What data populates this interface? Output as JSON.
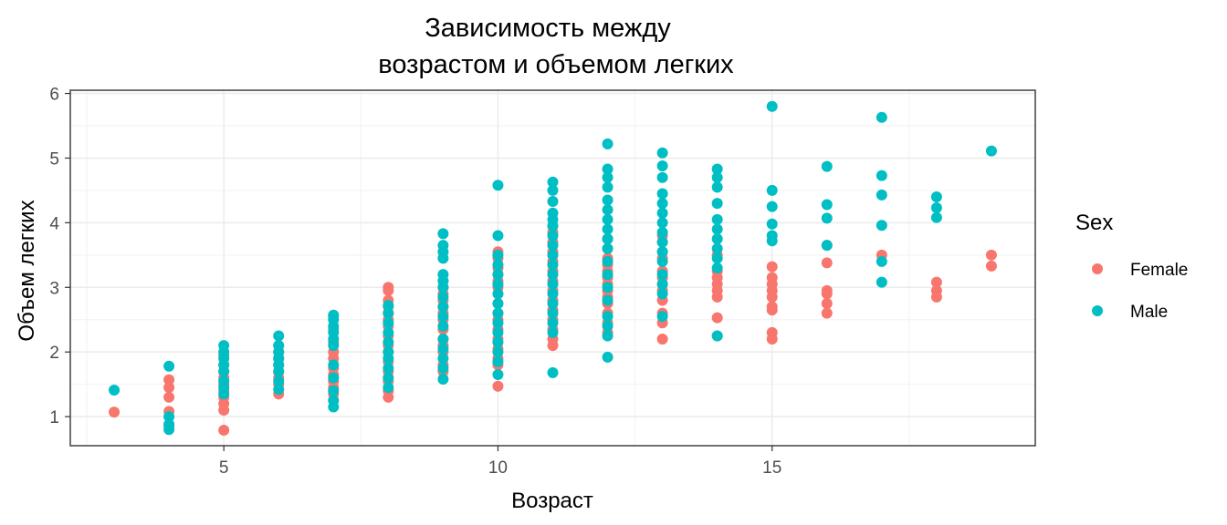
{
  "chart_data": {
    "type": "scatter",
    "title": [
      "Зависимость между",
      "возрастом и объемом легких"
    ],
    "xlabel": "Возраст",
    "ylabel": "Объем легких",
    "xlim": [
      2.2,
      19.8
    ],
    "ylim": [
      0.55,
      6.05
    ],
    "xticks": [
      5,
      10,
      15
    ],
    "yticks": [
      1,
      2,
      3,
      4,
      5,
      6
    ],
    "grid": true,
    "legend": {
      "title": "Sex",
      "position": "right",
      "entries": [
        {
          "label": "Female",
          "color": "#F8766D"
        },
        {
          "label": "Male",
          "color": "#00BFC4"
        }
      ]
    },
    "series": [
      {
        "name": "Female",
        "color": "#F8766D",
        "points": [
          [
            3,
            1.07
          ],
          [
            4,
            0.85
          ],
          [
            4,
            1.08
          ],
          [
            4,
            1.3
          ],
          [
            4,
            1.45
          ],
          [
            4,
            1.57
          ],
          [
            5,
            0.79
          ],
          [
            5,
            1.1
          ],
          [
            5,
            1.2
          ],
          [
            5,
            1.3
          ],
          [
            5,
            1.4
          ],
          [
            5,
            1.5
          ],
          [
            5,
            1.6
          ],
          [
            5,
            1.7
          ],
          [
            5,
            1.8
          ],
          [
            5,
            1.95
          ],
          [
            6,
            1.35
          ],
          [
            6,
            1.5
          ],
          [
            6,
            1.6
          ],
          [
            6,
            1.7
          ],
          [
            6,
            1.8
          ],
          [
            6,
            1.9
          ],
          [
            6,
            2.0
          ],
          [
            6,
            2.1
          ],
          [
            7,
            1.25
          ],
          [
            7,
            1.35
          ],
          [
            7,
            1.45
          ],
          [
            7,
            1.55
          ],
          [
            7,
            1.65
          ],
          [
            7,
            1.75
          ],
          [
            7,
            1.9
          ],
          [
            7,
            2.0
          ],
          [
            7,
            2.15
          ],
          [
            7,
            2.35
          ],
          [
            7,
            2.55
          ],
          [
            8,
            1.3
          ],
          [
            8,
            1.4
          ],
          [
            8,
            1.55
          ],
          [
            8,
            1.7
          ],
          [
            8,
            1.85
          ],
          [
            8,
            2.0
          ],
          [
            8,
            2.1
          ],
          [
            8,
            2.25
          ],
          [
            8,
            2.4
          ],
          [
            8,
            2.5
          ],
          [
            8,
            2.6
          ],
          [
            8,
            2.7
          ],
          [
            8,
            2.8
          ],
          [
            8,
            2.95
          ],
          [
            8,
            3.0
          ],
          [
            9,
            1.7
          ],
          [
            9,
            1.8
          ],
          [
            9,
            2.0
          ],
          [
            9,
            2.1
          ],
          [
            9,
            2.2
          ],
          [
            9,
            2.35
          ],
          [
            9,
            2.5
          ],
          [
            9,
            2.6
          ],
          [
            9,
            2.7
          ],
          [
            9,
            2.8
          ],
          [
            9,
            2.9
          ],
          [
            9,
            3.0
          ],
          [
            9,
            3.1
          ],
          [
            10,
            1.47
          ],
          [
            10,
            1.8
          ],
          [
            10,
            1.9
          ],
          [
            10,
            2.05
          ],
          [
            10,
            2.2
          ],
          [
            10,
            2.35
          ],
          [
            10,
            2.5
          ],
          [
            10,
            2.6
          ],
          [
            10,
            2.75
          ],
          [
            10,
            2.9
          ],
          [
            10,
            3.0
          ],
          [
            10,
            3.1
          ],
          [
            10,
            3.2
          ],
          [
            10,
            3.3
          ],
          [
            10,
            3.45
          ],
          [
            10,
            3.55
          ],
          [
            11,
            2.1
          ],
          [
            11,
            2.2
          ],
          [
            11,
            2.35
          ],
          [
            11,
            2.5
          ],
          [
            11,
            2.65
          ],
          [
            11,
            2.8
          ],
          [
            11,
            2.95
          ],
          [
            11,
            3.1
          ],
          [
            11,
            3.25
          ],
          [
            11,
            3.4
          ],
          [
            11,
            3.55
          ],
          [
            11,
            3.7
          ],
          [
            11,
            3.85
          ],
          [
            11,
            3.95
          ],
          [
            12,
            2.3
          ],
          [
            12,
            2.45
          ],
          [
            12,
            2.6
          ],
          [
            12,
            2.75
          ],
          [
            12,
            2.85
          ],
          [
            12,
            2.95
          ],
          [
            12,
            3.05
          ],
          [
            12,
            3.15
          ],
          [
            12,
            3.25
          ],
          [
            12,
            3.35
          ],
          [
            12,
            3.45
          ],
          [
            12,
            3.6
          ],
          [
            12,
            3.75
          ],
          [
            13,
            2.2
          ],
          [
            13,
            2.45
          ],
          [
            13,
            2.6
          ],
          [
            13,
            2.8
          ],
          [
            13,
            2.95
          ],
          [
            13,
            3.05
          ],
          [
            13,
            3.15
          ],
          [
            13,
            3.25
          ],
          [
            13,
            3.45
          ],
          [
            13,
            3.55
          ],
          [
            13,
            3.7
          ],
          [
            13,
            3.8
          ],
          [
            14,
            2.25
          ],
          [
            14,
            2.53
          ],
          [
            14,
            2.85
          ],
          [
            14,
            2.95
          ],
          [
            14,
            3.05
          ],
          [
            14,
            3.15
          ],
          [
            14,
            3.25
          ],
          [
            14,
            3.5
          ],
          [
            15,
            2.2
          ],
          [
            15,
            2.3
          ],
          [
            15,
            2.65
          ],
          [
            15,
            2.7
          ],
          [
            15,
            2.85
          ],
          [
            15,
            2.95
          ],
          [
            15,
            3.05
          ],
          [
            15,
            3.15
          ],
          [
            15,
            3.32
          ],
          [
            16,
            2.6
          ],
          [
            16,
            2.75
          ],
          [
            16,
            2.9
          ],
          [
            16,
            2.95
          ],
          [
            16,
            3.38
          ],
          [
            16,
            3.65
          ],
          [
            17,
            3.5
          ],
          [
            18,
            2.85
          ],
          [
            18,
            2.95
          ],
          [
            18,
            3.08
          ],
          [
            19,
            3.33
          ],
          [
            19,
            3.5
          ]
        ]
      },
      {
        "name": "Male",
        "color": "#00BFC4",
        "points": [
          [
            3,
            1.41
          ],
          [
            4,
            0.8
          ],
          [
            4,
            0.88
          ],
          [
            4,
            1.0
          ],
          [
            4,
            1.78
          ],
          [
            5,
            1.35
          ],
          [
            5,
            1.45
          ],
          [
            5,
            1.55
          ],
          [
            5,
            1.7
          ],
          [
            5,
            1.8
          ],
          [
            5,
            1.9
          ],
          [
            5,
            2.0
          ],
          [
            5,
            2.1
          ],
          [
            6,
            1.42
          ],
          [
            6,
            1.55
          ],
          [
            6,
            1.7
          ],
          [
            6,
            1.8
          ],
          [
            6,
            1.9
          ],
          [
            6,
            2.0
          ],
          [
            6,
            2.1
          ],
          [
            6,
            2.25
          ],
          [
            7,
            1.15
          ],
          [
            7,
            1.25
          ],
          [
            7,
            1.4
          ],
          [
            7,
            1.6
          ],
          [
            7,
            1.8
          ],
          [
            7,
            2.1
          ],
          [
            7,
            2.2
          ],
          [
            7,
            2.3
          ],
          [
            7,
            2.4
          ],
          [
            7,
            2.5
          ],
          [
            7,
            2.57
          ],
          [
            8,
            1.45
          ],
          [
            8,
            1.6
          ],
          [
            8,
            1.75
          ],
          [
            8,
            1.9
          ],
          [
            8,
            2.0
          ],
          [
            8,
            2.15
          ],
          [
            8,
            2.3
          ],
          [
            8,
            2.45
          ],
          [
            8,
            2.6
          ],
          [
            8,
            2.72
          ],
          [
            9,
            1.58
          ],
          [
            9,
            1.75
          ],
          [
            9,
            1.9
          ],
          [
            9,
            2.05
          ],
          [
            9,
            2.2
          ],
          [
            9,
            2.4
          ],
          [
            9,
            2.55
          ],
          [
            9,
            2.7
          ],
          [
            9,
            2.85
          ],
          [
            9,
            3.0
          ],
          [
            9,
            3.1
          ],
          [
            9,
            3.2
          ],
          [
            9,
            3.45
          ],
          [
            9,
            3.55
          ],
          [
            9,
            3.65
          ],
          [
            9,
            3.83
          ],
          [
            10,
            1.65
          ],
          [
            10,
            1.85
          ],
          [
            10,
            2.0
          ],
          [
            10,
            2.15
          ],
          [
            10,
            2.3
          ],
          [
            10,
            2.45
          ],
          [
            10,
            2.6
          ],
          [
            10,
            2.75
          ],
          [
            10,
            2.9
          ],
          [
            10,
            3.05
          ],
          [
            10,
            3.2
          ],
          [
            10,
            3.35
          ],
          [
            10,
            3.5
          ],
          [
            10,
            3.8
          ],
          [
            10,
            4.58
          ],
          [
            11,
            1.68
          ],
          [
            11,
            2.3
          ],
          [
            11,
            2.45
          ],
          [
            11,
            2.6
          ],
          [
            11,
            2.75
          ],
          [
            11,
            2.9
          ],
          [
            11,
            3.05
          ],
          [
            11,
            3.2
          ],
          [
            11,
            3.35
          ],
          [
            11,
            3.5
          ],
          [
            11,
            3.65
          ],
          [
            11,
            3.8
          ],
          [
            11,
            3.95
          ],
          [
            11,
            4.05
          ],
          [
            11,
            4.15
          ],
          [
            11,
            4.33
          ],
          [
            11,
            4.5
          ],
          [
            11,
            4.63
          ],
          [
            12,
            1.92
          ],
          [
            12,
            2.25
          ],
          [
            12,
            2.4
          ],
          [
            12,
            2.55
          ],
          [
            12,
            2.8
          ],
          [
            12,
            3.0
          ],
          [
            12,
            3.2
          ],
          [
            12,
            3.4
          ],
          [
            12,
            3.6
          ],
          [
            12,
            3.75
          ],
          [
            12,
            3.9
          ],
          [
            12,
            4.05
          ],
          [
            12,
            4.2
          ],
          [
            12,
            4.35
          ],
          [
            12,
            4.55
          ],
          [
            12,
            4.7
          ],
          [
            12,
            4.83
          ],
          [
            12,
            5.22
          ],
          [
            13,
            2.55
          ],
          [
            13,
            2.9
          ],
          [
            13,
            3.05
          ],
          [
            13,
            3.2
          ],
          [
            13,
            3.4
          ],
          [
            13,
            3.55
          ],
          [
            13,
            3.7
          ],
          [
            13,
            3.85
          ],
          [
            13,
            4.0
          ],
          [
            13,
            4.15
          ],
          [
            13,
            4.3
          ],
          [
            13,
            4.45
          ],
          [
            13,
            4.7
          ],
          [
            13,
            4.88
          ],
          [
            13,
            5.08
          ],
          [
            14,
            2.25
          ],
          [
            14,
            3.3
          ],
          [
            14,
            3.45
          ],
          [
            14,
            3.6
          ],
          [
            14,
            3.75
          ],
          [
            14,
            3.9
          ],
          [
            14,
            4.05
          ],
          [
            14,
            4.3
          ],
          [
            14,
            4.55
          ],
          [
            14,
            4.7
          ],
          [
            14,
            4.83
          ],
          [
            15,
            3.72
          ],
          [
            15,
            3.8
          ],
          [
            15,
            3.98
          ],
          [
            15,
            4.25
          ],
          [
            15,
            4.5
          ],
          [
            15,
            5.8
          ],
          [
            16,
            3.65
          ],
          [
            16,
            4.07
          ],
          [
            16,
            4.28
          ],
          [
            16,
            4.87
          ],
          [
            17,
            3.08
          ],
          [
            17,
            3.4
          ],
          [
            17,
            3.96
          ],
          [
            17,
            4.43
          ],
          [
            17,
            4.73
          ],
          [
            17,
            5.63
          ],
          [
            18,
            4.08
          ],
          [
            18,
            4.23
          ],
          [
            18,
            4.4
          ],
          [
            19,
            5.11
          ]
        ]
      }
    ]
  }
}
